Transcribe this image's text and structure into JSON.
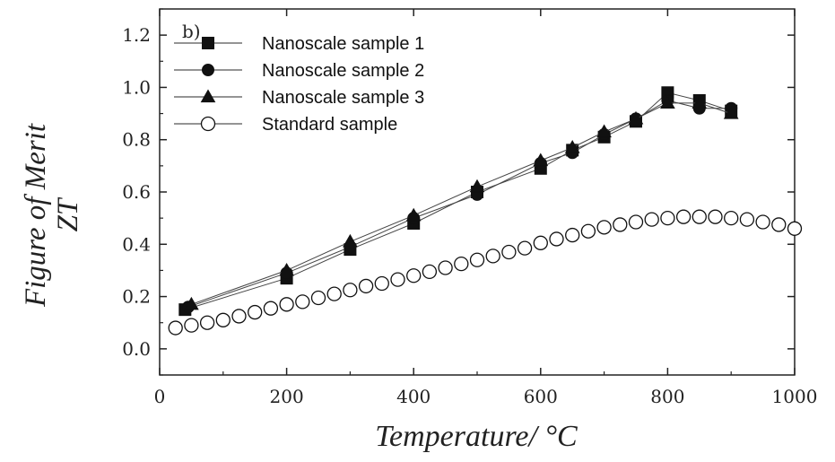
{
  "chart_data": {
    "type": "scatter",
    "corner_mark": "b)",
    "xlabel": "Temperature/ °C",
    "ylabel_line1": "Figure of Merit",
    "ylabel_line2": "ZT",
    "xlim": [
      0,
      1000
    ],
    "ylim": [
      -0.1,
      1.3
    ],
    "x_ticks": [
      0,
      200,
      400,
      600,
      800,
      1000
    ],
    "x_tick_labels": [
      "0",
      "200",
      "400",
      "600",
      "800",
      "1000"
    ],
    "y_ticks": [
      0.0,
      0.2,
      0.4,
      0.6,
      0.8,
      1.0,
      1.2
    ],
    "y_tick_labels": [
      "0.0",
      "0.2",
      "0.4",
      "0.6",
      "0.8",
      "1.0",
      "1.2"
    ],
    "grid": false,
    "legend_position": "top-left",
    "series": [
      {
        "name": "Nanoscale sample 1",
        "marker": "square",
        "filled": true,
        "color": "#111111",
        "x": [
          40,
          200,
          300,
          400,
          500,
          600,
          650,
          700,
          750,
          800,
          850,
          900
        ],
        "y": [
          0.15,
          0.27,
          0.38,
          0.48,
          0.6,
          0.69,
          0.76,
          0.81,
          0.87,
          0.98,
          0.95,
          0.91
        ]
      },
      {
        "name": "Nanoscale sample 2",
        "marker": "circle",
        "filled": true,
        "color": "#111111",
        "x": [
          45,
          200,
          300,
          400,
          500,
          600,
          650,
          700,
          750,
          800,
          850,
          900
        ],
        "y": [
          0.16,
          0.29,
          0.39,
          0.5,
          0.59,
          0.71,
          0.75,
          0.82,
          0.88,
          0.95,
          0.92,
          0.92
        ]
      },
      {
        "name": "Nanoscale sample 3",
        "marker": "triangle",
        "filled": true,
        "color": "#111111",
        "x": [
          50,
          200,
          300,
          400,
          500,
          600,
          650,
          700,
          750,
          800,
          850,
          900
        ],
        "y": [
          0.17,
          0.3,
          0.41,
          0.51,
          0.62,
          0.72,
          0.77,
          0.83,
          0.88,
          0.94,
          0.94,
          0.9
        ]
      },
      {
        "name": "Standard sample",
        "marker": "circle",
        "filled": false,
        "color": "#111111",
        "x": [
          25,
          50,
          75,
          100,
          125,
          150,
          175,
          200,
          225,
          250,
          275,
          300,
          325,
          350,
          375,
          400,
          425,
          450,
          475,
          500,
          525,
          550,
          575,
          600,
          625,
          650,
          675,
          700,
          725,
          750,
          775,
          800,
          825,
          850,
          875,
          900,
          925,
          950,
          975,
          1000
        ],
        "y": [
          0.08,
          0.09,
          0.1,
          0.11,
          0.125,
          0.14,
          0.155,
          0.17,
          0.18,
          0.195,
          0.21,
          0.225,
          0.24,
          0.25,
          0.265,
          0.28,
          0.295,
          0.31,
          0.325,
          0.34,
          0.355,
          0.37,
          0.385,
          0.405,
          0.42,
          0.435,
          0.45,
          0.465,
          0.475,
          0.485,
          0.495,
          0.5,
          0.505,
          0.505,
          0.505,
          0.5,
          0.495,
          0.485,
          0.475,
          0.46
        ]
      }
    ]
  }
}
